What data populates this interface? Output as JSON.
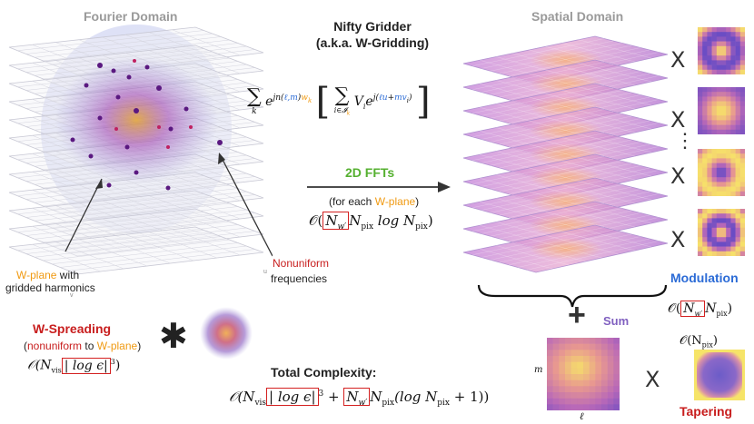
{
  "labels": {
    "fourier_domain": "Fourier Domain",
    "spatial_domain": "Spatial Domain",
    "title_line1": "Nifty Gridder",
    "title_line2": "(a.k.a. W-Gridding)",
    "fft_label": "2D FFTs",
    "fft_sub_prefix": "(for each ",
    "fft_sub_wplane": "W-plane",
    "fft_sub_suffix": ")",
    "wplane_term": "W-plane",
    "wplane_rest": " with",
    "gridded": "gridded harmonics",
    "nonuniform_term": "Nonuniform",
    "frequencies": "frequencies",
    "wspreading": "W-Spreading",
    "ws_sub_open": "(",
    "ws_sub_nonuniform": "nonuniform",
    "ws_sub_to": " to ",
    "ws_sub_wplane": "W-plane",
    "ws_sub_close": ")",
    "modulation": "Modulation",
    "sum": "Sum",
    "total_complexity": "Total Complexity:",
    "tapering": "Tapering",
    "axis_m": "m",
    "axis_l": "ℓ",
    "tiny_v": "v",
    "tiny_u": "u"
  },
  "math": {
    "sum_k": "∑",
    "sub_k": "k",
    "exp_base": "e",
    "exp_jn": "jn(",
    "exp_lm": "ℓ,m",
    "exp_close": ")",
    "exp_wk": "w",
    "exp_wk_sub": "k",
    "bracket_sum": "∑",
    "bracket_sub": "i∈𝓘",
    "bracket_sub_k": "k",
    "vi": "V",
    "vi_sub": "i",
    "exp2_j": "j(",
    "exp2_lu": "ℓu",
    "exp2_plus": "+",
    "exp2_mv": "mv",
    "exp2_i": "i",
    "exp2_close": ")",
    "fft_O": "𝒪(",
    "fft_Nw": "N",
    "fft_Nw_sub": "w′",
    "fft_rest": "N",
    "fft_rest_sub": "pix",
    "fft_log": " log N",
    "fft_log_sub": "pix",
    "fft_close": ")",
    "ws_O": "𝒪(N",
    "ws_sub": "vis",
    "ws_box": "| log ϵ|",
    "ws_pow": "3",
    "ws_close": ")",
    "mod_O": "𝒪(",
    "mod_box": "N",
    "mod_box_sub": "w′",
    "mod_rest": "N",
    "mod_rest_sub": "pix",
    "mod_close": ")",
    "tap_O": "𝒪(N",
    "tap_sub": "pix",
    "tap_close": ")",
    "tot_O": "𝒪(N",
    "tot_sub": "vis",
    "tot_box1": "| log ϵ|",
    "tot_pow": "3",
    "tot_plus": " + ",
    "tot_box2": "N",
    "tot_box2_sub": "w′",
    "tot_rest": "N",
    "tot_rest_sub": "pix",
    "tot_log": "(log N",
    "tot_log_sub": "pix",
    "tot_end": " + 1))"
  },
  "symbols": {
    "x": "X",
    "dots": "⋮",
    "star": "✱",
    "plus": "+"
  },
  "colors": {
    "w_plane": "#f09a12",
    "nonuniform": "#c81e1e",
    "modulation": "#2b6bd6",
    "fft": "#55b030",
    "sum": "#8060c0",
    "highlight_box": "#d42020"
  }
}
